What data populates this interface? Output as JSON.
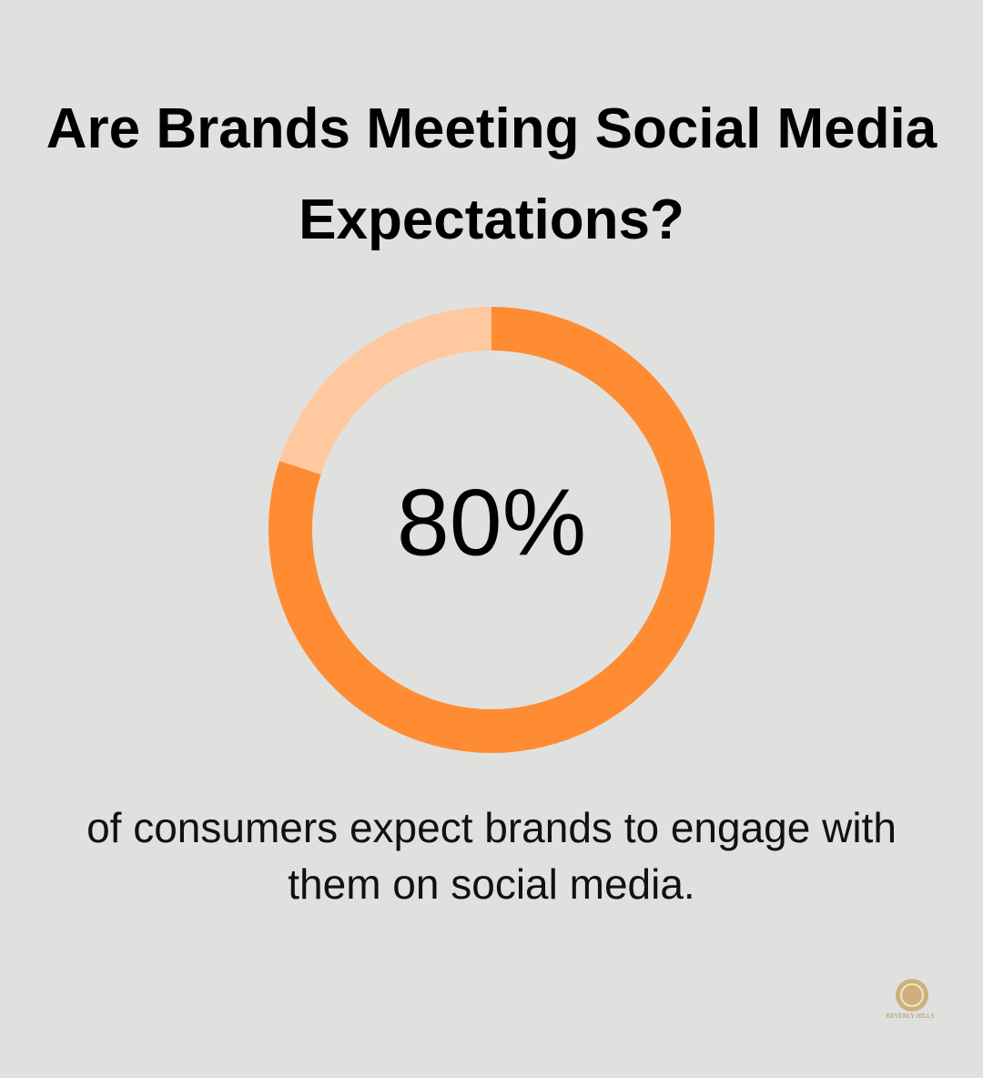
{
  "chart_data": {
    "type": "donut",
    "title": "Are Brands Meeting Social Media Expectations?",
    "values": [
      80,
      20
    ],
    "value_labels": [
      "80%",
      null
    ],
    "colors": [
      "#ff8c33",
      "#ffc89f"
    ],
    "description": "of consumers expect brands to engage with them on social media."
  },
  "brand": "BEVERLY HILLS"
}
